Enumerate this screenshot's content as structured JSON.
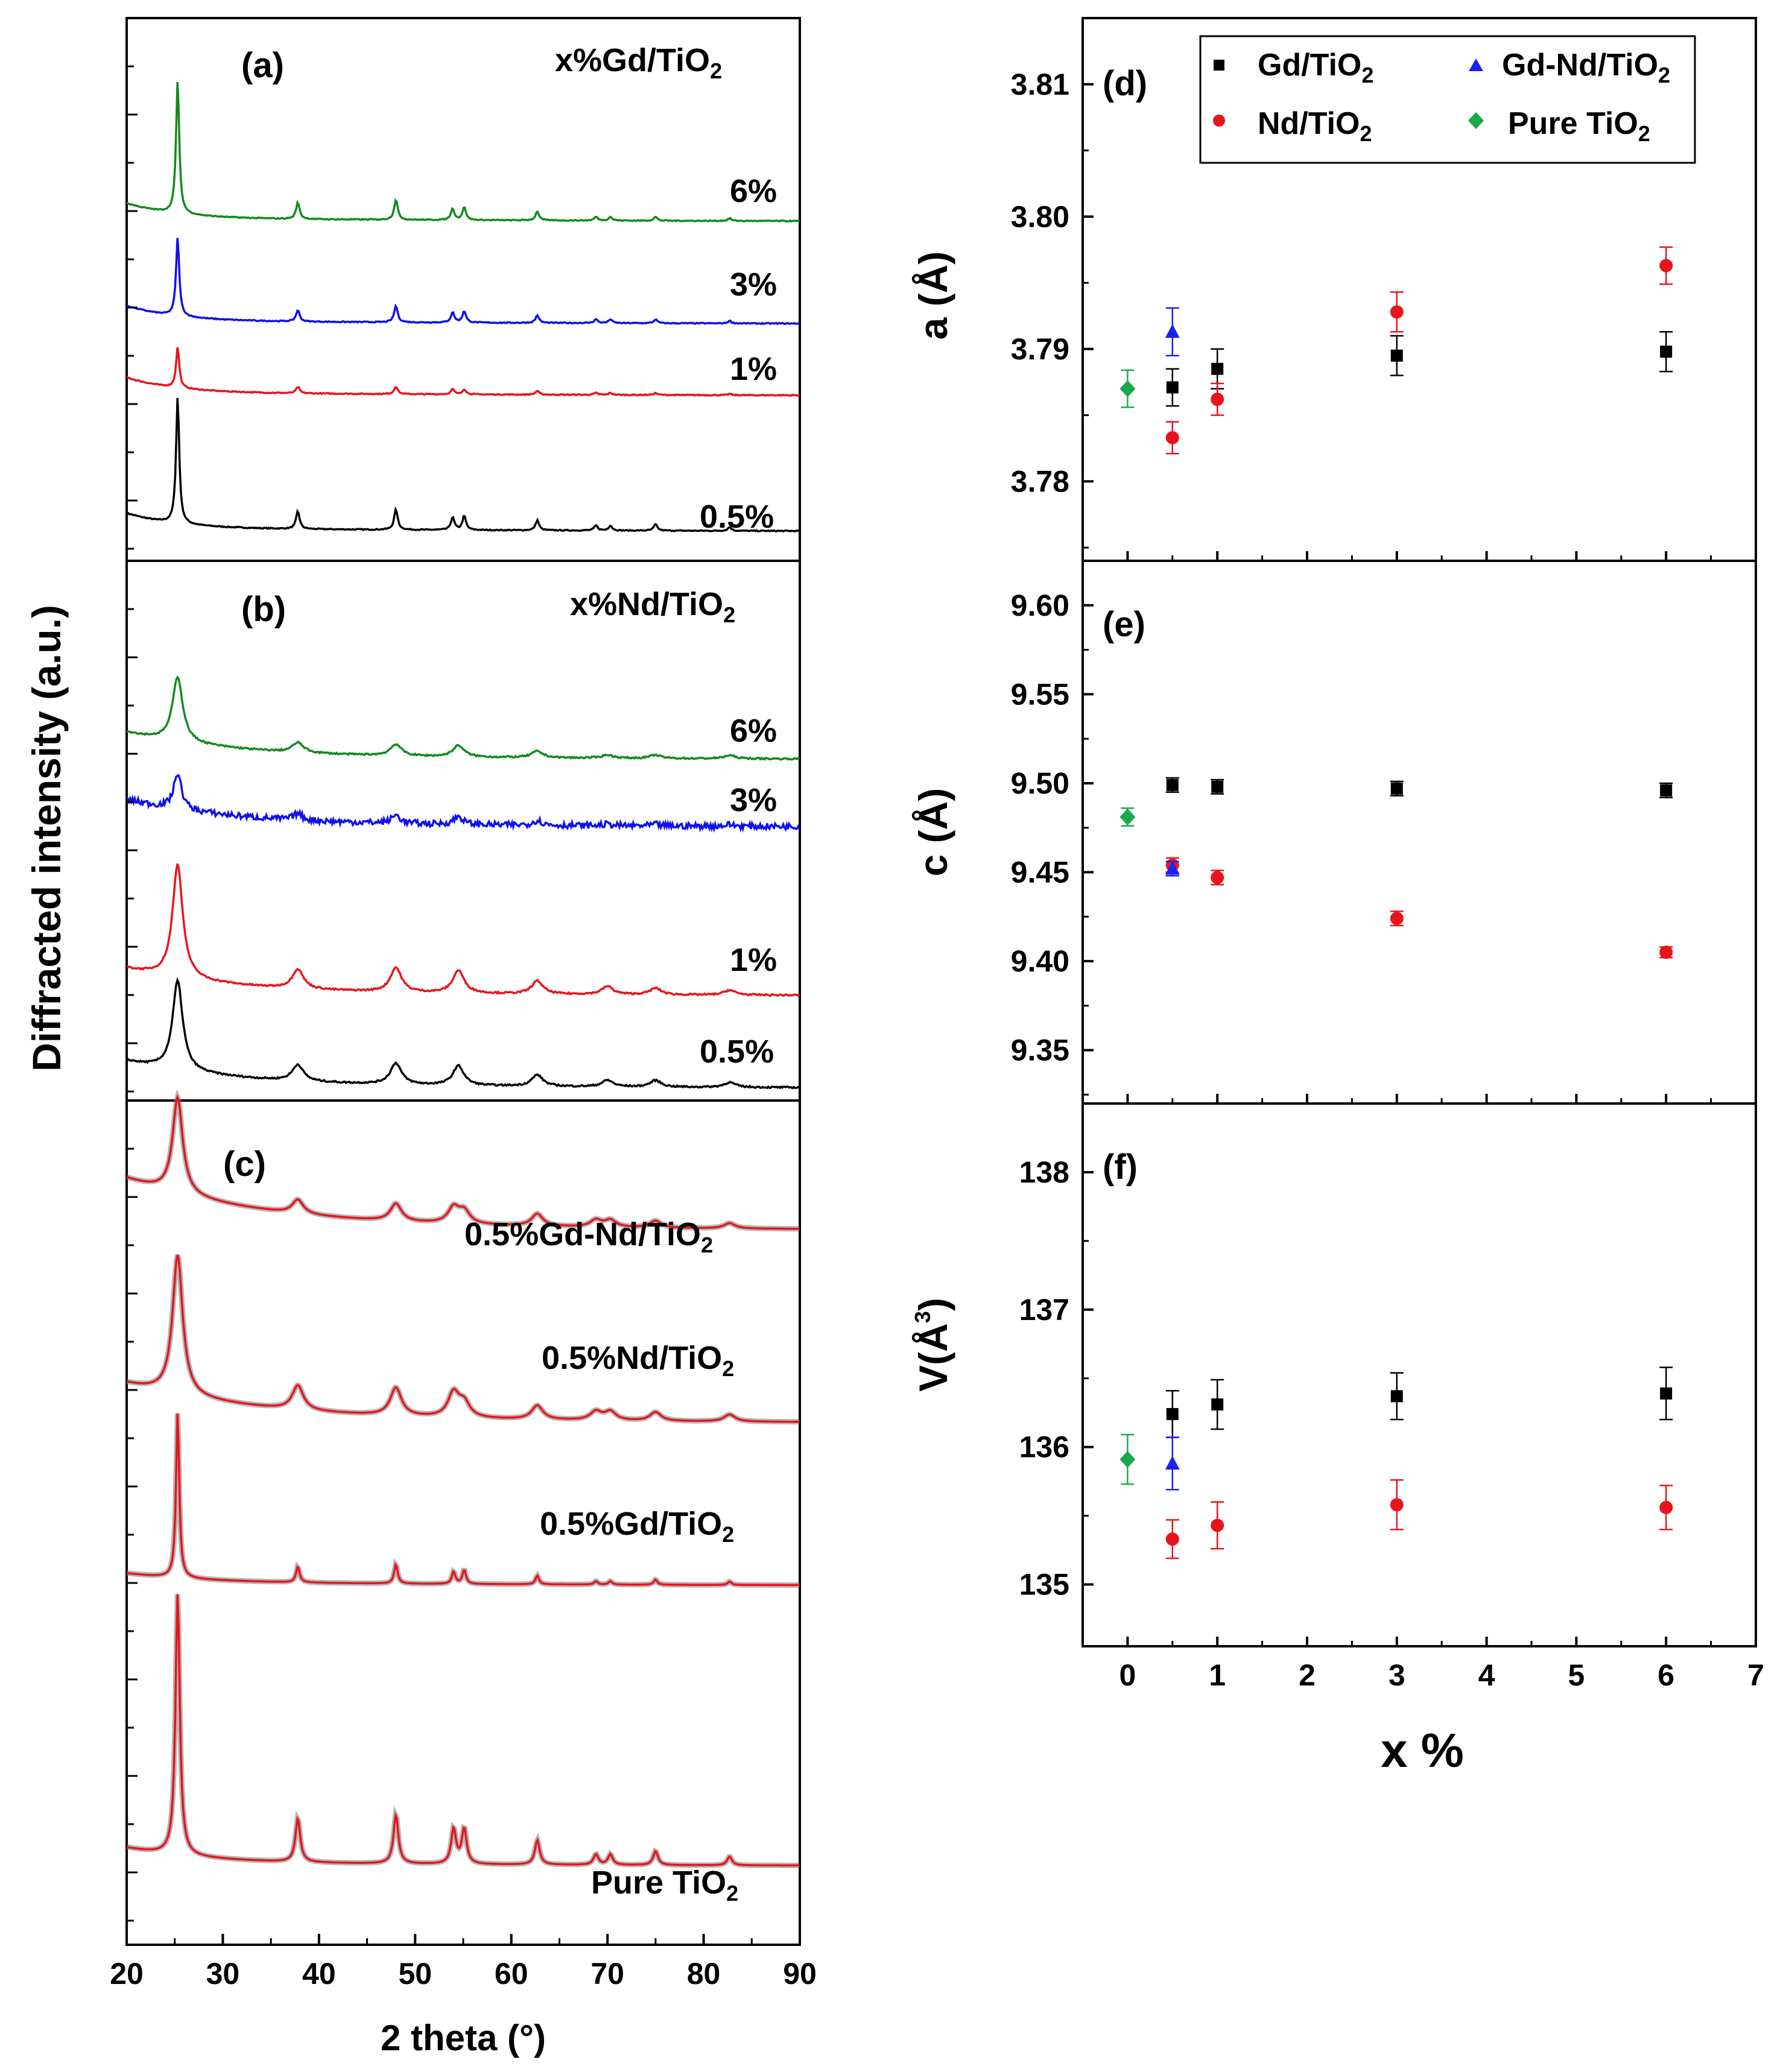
{
  "chart_data": [
    {
      "type": "line",
      "panel": "(a)",
      "title": "x%Gd/TiO2",
      "xlim": [
        20,
        90
      ],
      "ylabel": "Diffracted intensity (a.u.)",
      "peaks_2theta": [
        25.3,
        37.8,
        48.0,
        53.9,
        55.1,
        62.7,
        68.8,
        70.3,
        75.0,
        82.7
      ],
      "series": [
        {
          "name": "0.5%",
          "color": "#000000",
          "relative_peak_heights": [
            1.0,
            0.14,
            0.16,
            0.1,
            0.11,
            0.08,
            0.04,
            0.04,
            0.05,
            0.03
          ]
        },
        {
          "name": "1%",
          "color": "#e8141c",
          "relative_peak_heights": [
            0.32,
            0.05,
            0.06,
            0.04,
            0.04,
            0.03,
            0.015,
            0.015,
            0.015,
            0.01
          ]
        },
        {
          "name": "3%",
          "color": "#1010ee",
          "relative_peak_heights": [
            0.62,
            0.09,
            0.13,
            0.08,
            0.09,
            0.06,
            0.03,
            0.03,
            0.03,
            0.02
          ]
        },
        {
          "name": "6%",
          "color": "#138a1e",
          "relative_peak_heights": [
            1.05,
            0.13,
            0.16,
            0.09,
            0.1,
            0.07,
            0.03,
            0.03,
            0.03,
            0.02
          ]
        }
      ]
    },
    {
      "type": "line",
      "panel": "(b)",
      "title": "x%Nd/TiO2",
      "xlim": [
        20,
        90
      ],
      "peaks_2theta": [
        25.3,
        37.8,
        48.0,
        54.5,
        62.7,
        70.0,
        75.0,
        82.7
      ],
      "series": [
        {
          "name": "0.5%",
          "color": "#000000",
          "relative_peak_heights": [
            0.55,
            0.1,
            0.13,
            0.12,
            0.07,
            0.04,
            0.04,
            0.03
          ]
        },
        {
          "name": "1%",
          "color": "#e8141c",
          "relative_peak_heights": [
            0.7,
            0.12,
            0.15,
            0.14,
            0.08,
            0.05,
            0.04,
            0.03
          ]
        },
        {
          "name": "3%",
          "color": "#1010ee",
          "relative_peak_heights": [
            0.22,
            0.04,
            0.05,
            0.05,
            0.03,
            0.01,
            0.01,
            0.01
          ]
        },
        {
          "name": "6%",
          "color": "#138a1e",
          "relative_peak_heights": [
            0.4,
            0.06,
            0.07,
            0.07,
            0.04,
            0.02,
            0.02,
            0.02
          ]
        }
      ]
    },
    {
      "type": "line",
      "panel": "(c)",
      "xlim": [
        20,
        90
      ],
      "xlabel": "2 theta (°)",
      "xticks": [
        20,
        30,
        40,
        50,
        60,
        70,
        80,
        90
      ],
      "peaks_2theta": [
        25.3,
        37.8,
        48.0,
        54.0,
        55.1,
        62.7,
        68.8,
        70.3,
        75.0,
        82.7
      ],
      "series": [
        {
          "name": "Pure TiO2",
          "color": "#e8141c",
          "markers": "observed (gray) + fit (red)",
          "relative_peak_heights": [
            1.5,
            0.25,
            0.28,
            0.2,
            0.2,
            0.14,
            0.06,
            0.06,
            0.08,
            0.05
          ]
        },
        {
          "name": "0.5%Gd/TiO2",
          "color": "#e8141c",
          "markers": "observed (gray) + fit (red)",
          "relative_peak_heights": [
            0.95,
            0.09,
            0.11,
            0.07,
            0.08,
            0.05,
            0.02,
            0.02,
            0.03,
            0.02
          ]
        },
        {
          "name": "0.5%Nd/TiO2",
          "color": "#e8141c",
          "markers": "observed (gray) + fit (red)",
          "relative_peak_heights": [
            0.8,
            0.14,
            0.16,
            0.14,
            0.08,
            0.08,
            0.05,
            0.05,
            0.05,
            0.04
          ]
        },
        {
          "name": "0.5%Gd-Nd/TiO2",
          "color": "#e8141c",
          "markers": "observed (gray) + fit (red)",
          "relative_peak_heights": [
            0.55,
            0.08,
            0.1,
            0.09,
            0.07,
            0.07,
            0.04,
            0.04,
            0.04,
            0.03
          ]
        }
      ]
    },
    {
      "type": "scatter",
      "panel": "(d)",
      "ylabel": "a (Å)",
      "ylim": [
        3.774,
        3.815
      ],
      "yticks": [
        3.78,
        3.79,
        3.8,
        3.81
      ],
      "xlim": [
        -0.5,
        7
      ],
      "series": [
        {
          "name": "Gd/TiO2",
          "color": "#000000",
          "marker": "square",
          "x": [
            0.5,
            1,
            3,
            6
          ],
          "y": [
            3.7871,
            3.7885,
            3.7895,
            3.7898
          ],
          "err": [
            0.0014,
            0.0015,
            0.0015,
            0.0015
          ]
        },
        {
          "name": "Nd/TiO2",
          "color": "#e8141c",
          "marker": "circle",
          "x": [
            0.5,
            1,
            3,
            6
          ],
          "y": [
            3.7833,
            3.7862,
            3.7928,
            3.7963
          ],
          "err": [
            0.0012,
            0.0012,
            0.0015,
            0.0014
          ]
        },
        {
          "name": "Gd-Nd/TiO2",
          "color": "#1a22ee",
          "marker": "triangle",
          "x": [
            0.5
          ],
          "y": [
            3.7913
          ],
          "err": [
            0.0018
          ]
        },
        {
          "name": "Pure TiO2",
          "color": "#1aa84c",
          "marker": "diamond",
          "x": [
            0
          ],
          "y": [
            3.787
          ],
          "err": [
            0.0014
          ]
        }
      ],
      "legend": {
        "placement": "top-right",
        "entries": [
          "Gd/TiO2",
          "Gd-Nd/TiO2",
          "Nd/TiO2",
          "Pure TiO2"
        ]
      }
    },
    {
      "type": "scatter",
      "panel": "(e)",
      "ylabel": "c (Å)",
      "ylim": [
        9.32,
        9.625
      ],
      "yticks": [
        9.35,
        9.4,
        9.45,
        9.5,
        9.55,
        9.6
      ],
      "xlim": [
        -0.5,
        7
      ],
      "series": [
        {
          "name": "Gd/TiO2",
          "color": "#000000",
          "marker": "square",
          "x": [
            0.5,
            1,
            3,
            6
          ],
          "y": [
            9.499,
            9.498,
            9.497,
            9.496
          ],
          "err": [
            0.004,
            0.004,
            0.004,
            0.004
          ]
        },
        {
          "name": "Nd/TiO2",
          "color": "#e8141c",
          "marker": "circle",
          "x": [
            0.5,
            1,
            3,
            6
          ],
          "y": [
            9.454,
            9.447,
            9.424,
            9.405
          ],
          "err": [
            0.004,
            0.004,
            0.004,
            0.003
          ]
        },
        {
          "name": "Gd-Nd/TiO2",
          "color": "#1a22ee",
          "marker": "triangle",
          "x": [
            0.5
          ],
          "y": [
            9.452
          ],
          "err": [
            0.004
          ]
        },
        {
          "name": "Pure TiO2",
          "color": "#1aa84c",
          "marker": "diamond",
          "x": [
            0
          ],
          "y": [
            9.481
          ],
          "err": [
            0.005
          ]
        }
      ]
    },
    {
      "type": "scatter",
      "panel": "(f)",
      "ylabel": "V(Å3)",
      "ylim": [
        134.55,
        138.5
      ],
      "yticks": [
        135,
        136,
        137,
        138
      ],
      "xlabel": "x %",
      "xlim": [
        -0.5,
        7
      ],
      "xticks": [
        0,
        1,
        2,
        3,
        4,
        5,
        6,
        7
      ],
      "series": [
        {
          "name": "Gd/TiO2",
          "color": "#000000",
          "marker": "square",
          "x": [
            0.5,
            1,
            3,
            6
          ],
          "y": [
            136.24,
            136.31,
            136.37,
            136.39
          ],
          "err": [
            0.17,
            0.18,
            0.17,
            0.19
          ]
        },
        {
          "name": "Nd/TiO2",
          "color": "#e8141c",
          "marker": "circle",
          "x": [
            0.5,
            1,
            3,
            6
          ],
          "y": [
            135.33,
            135.43,
            135.58,
            135.56
          ],
          "err": [
            0.14,
            0.17,
            0.18,
            0.16
          ]
        },
        {
          "name": "Gd-Nd/TiO2",
          "color": "#1a22ee",
          "marker": "triangle",
          "x": [
            0.5
          ],
          "y": [
            135.88
          ],
          "err": [
            0.19
          ]
        },
        {
          "name": "Pure TiO2",
          "color": "#1aa84c",
          "marker": "diamond",
          "x": [
            0
          ],
          "y": [
            135.91
          ],
          "err": [
            0.18
          ]
        }
      ]
    }
  ],
  "text": {
    "panel_a": "(a)",
    "panel_b": "(b)",
    "panel_c": "(c)",
    "panel_d": "(d)",
    "panel_e": "(e)",
    "panel_f": "(f)",
    "title_a_main": "x%Gd/TiO",
    "title_b_main": "x%Nd/TiO",
    "sub2": "2",
    "label_6": "6%",
    "label_3": "3%",
    "label_1": "1%",
    "label_05": "0.5%",
    "c_gdnd_main": "0.5%Gd-Nd/TiO",
    "c_nd_main": "0.5%Nd/TiO",
    "c_gd_main": "0.5%Gd/TiO",
    "c_pure_main": "Pure TiO",
    "left_ylabel": "Diffracted intensity (a.u.)",
    "left_xlabel": "2 theta (°)",
    "d_ylabel": "a (Å)",
    "e_ylabel": "c (Å)",
    "f_ylabel_main": "V(Å",
    "f_ylabel_sup": "3",
    "f_ylabel_close": ")",
    "right_xlabel": "x %",
    "legend_gd": "Gd/TiO",
    "legend_gdnd": "Gd-Nd/TiO",
    "legend_nd": "Nd/TiO",
    "legend_pure": "Pure TiO",
    "x_ticks_left": [
      "20",
      "30",
      "40",
      "50",
      "60",
      "70",
      "80",
      "90"
    ],
    "x_ticks_right": [
      "0",
      "1",
      "2",
      "3",
      "4",
      "5",
      "6",
      "7"
    ],
    "d_ticks": [
      "3.78",
      "3.79",
      "3.80",
      "3.81"
    ],
    "e_ticks": [
      "9.35",
      "9.40",
      "9.45",
      "9.50",
      "9.55",
      "9.60"
    ],
    "f_ticks": [
      "135",
      "136",
      "137",
      "138"
    ]
  },
  "colors": {
    "black": "#000000",
    "red": "#e8141c",
    "blue": "#1010ee",
    "green": "#138a1e",
    "marker_blue": "#1a22ee",
    "marker_green": "#1aa84c",
    "obs_gray": "#7a7a7a"
  }
}
